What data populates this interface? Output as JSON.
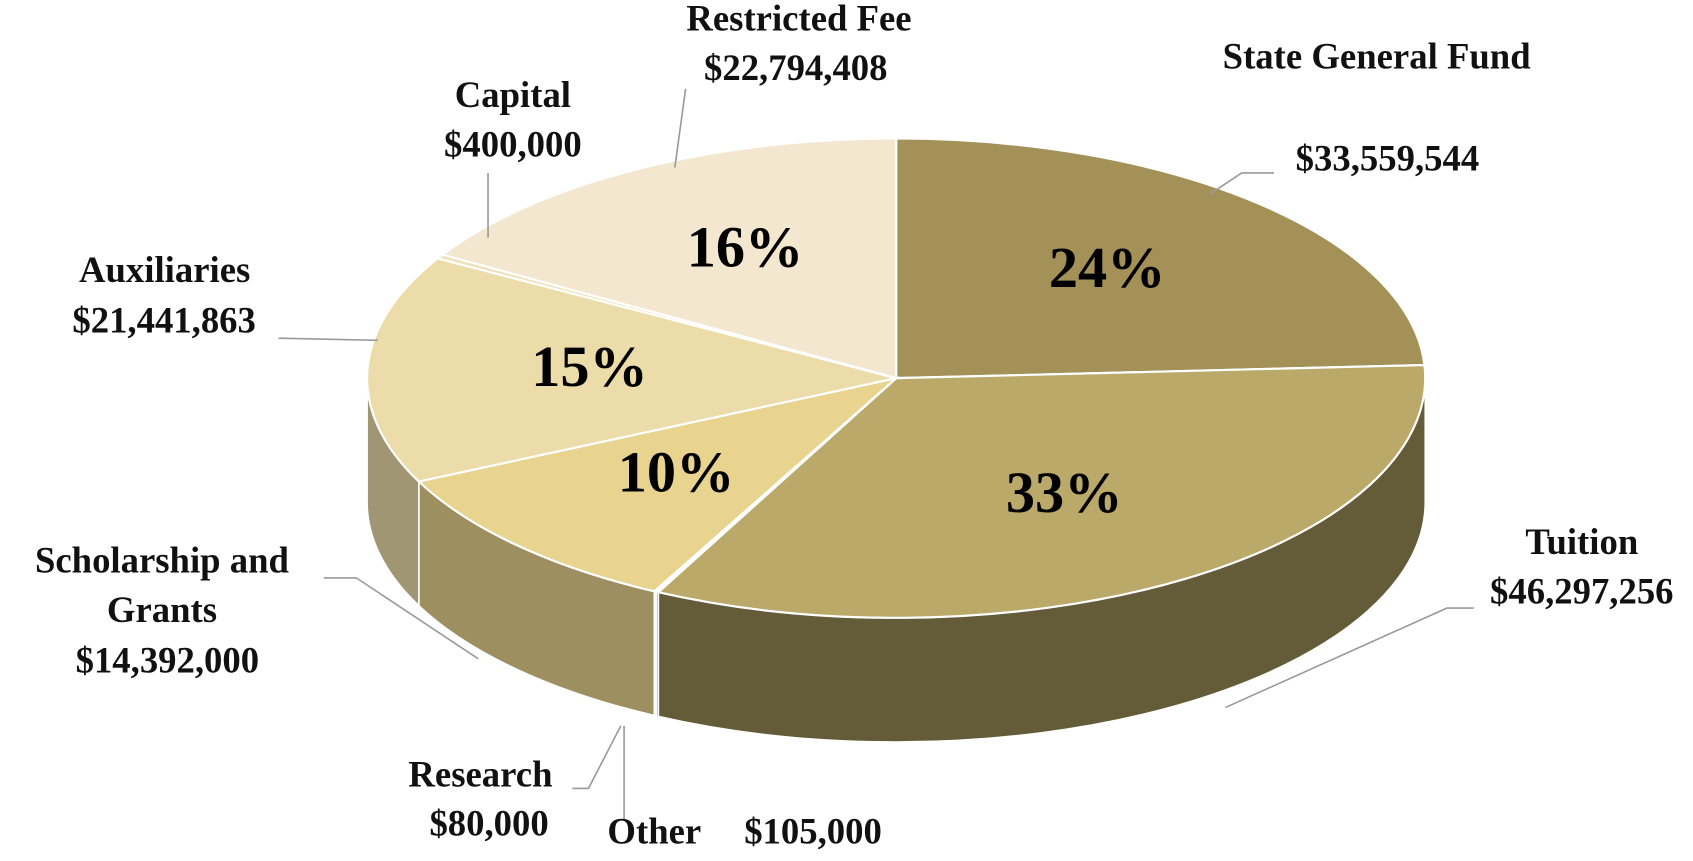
{
  "chart_data": {
    "type": "pie",
    "categories": [
      "State General Fund",
      "Tuition",
      "Other",
      "Research",
      "Scholarship and Grants",
      "Auxiliaries",
      "Capital",
      "Restricted Fee"
    ],
    "values": [
      33559544,
      46297256,
      105000,
      80000,
      14392000,
      21441863,
      400000,
      22794408
    ],
    "value_labels": [
      "$33,559,544",
      "$46,297,256",
      "$105,000",
      "$80,000",
      "$14,392,000",
      "$21,441,863",
      "$400,000",
      "$22,794,408"
    ],
    "percents": [
      24,
      33,
      null,
      null,
      10,
      15,
      null,
      16
    ],
    "percent_labels": [
      "24%",
      "33%",
      null,
      null,
      "10%",
      "15%",
      null,
      "16%"
    ],
    "colors": [
      "#a39158",
      "#bba96a",
      "#e2cf92",
      "#e6d59c",
      "#e8d38f",
      "#ecdcaa",
      "#efe0b8",
      "#f3e8cf"
    ],
    "three_d": true
  }
}
